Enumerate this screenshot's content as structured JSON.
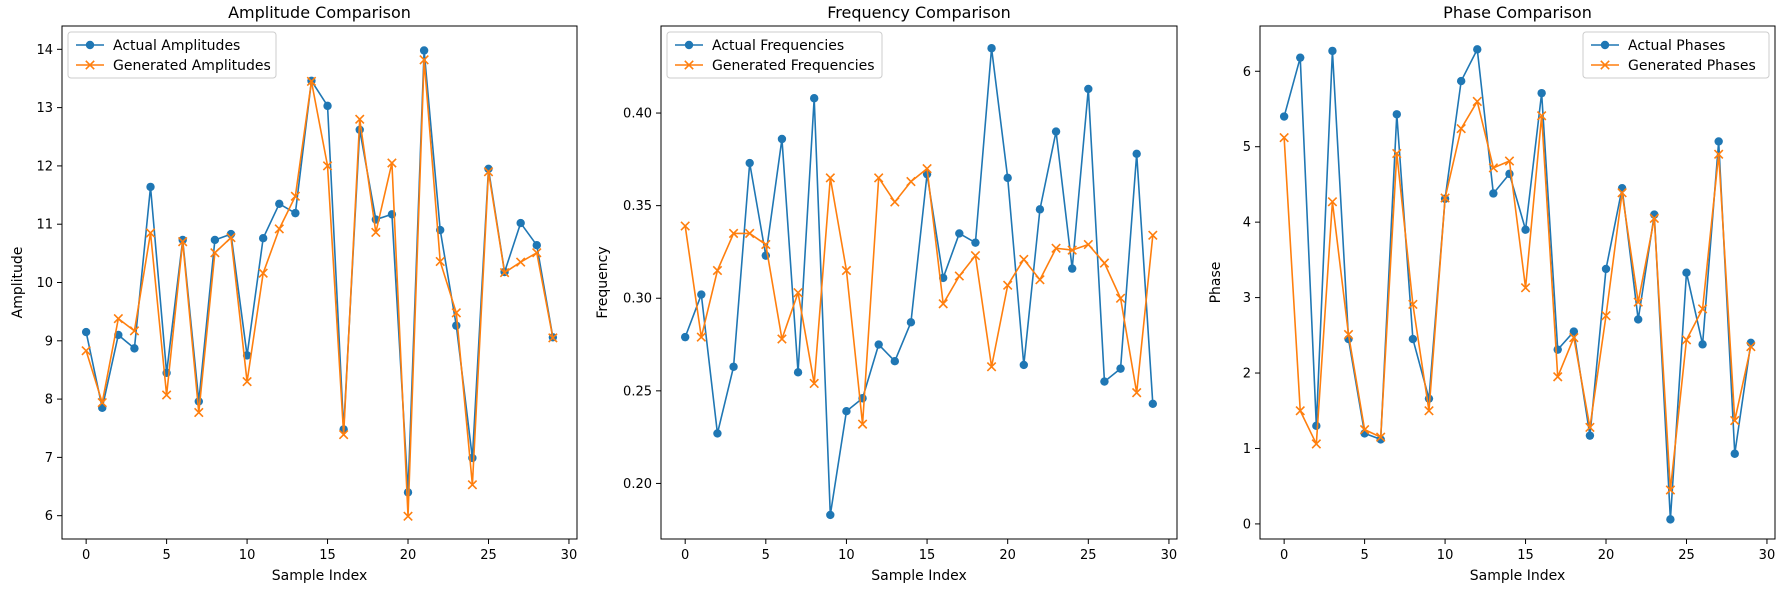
{
  "colors": {
    "actual": "#1f77b4",
    "generated": "#ff7f0e",
    "axes": "#000000",
    "legend_border": "#cccccc"
  },
  "chart_data": [
    {
      "type": "line",
      "title": "Amplitude Comparison",
      "xlabel": "Sample Index",
      "ylabel": "Amplitude",
      "xlim": [
        -1.5,
        30.5
      ],
      "ylim": [
        5.6,
        14.4
      ],
      "xticks": [
        0,
        5,
        10,
        15,
        20,
        25,
        30
      ],
      "yticks": [
        6,
        7,
        8,
        9,
        10,
        11,
        12,
        13,
        14
      ],
      "legend_position": "top-left",
      "grid": false,
      "x": [
        0,
        1,
        2,
        3,
        4,
        5,
        6,
        7,
        8,
        9,
        10,
        11,
        12,
        13,
        14,
        15,
        16,
        17,
        18,
        19,
        20,
        21,
        22,
        23,
        24,
        25,
        26,
        27,
        28,
        29
      ],
      "series": [
        {
          "name": "Actual Amplitudes",
          "marker": "circle",
          "values": [
            9.15,
            7.85,
            9.1,
            8.87,
            11.64,
            8.45,
            10.73,
            7.96,
            10.73,
            10.83,
            8.75,
            10.76,
            11.35,
            11.19,
            13.46,
            13.03,
            7.48,
            12.62,
            11.08,
            11.17,
            6.4,
            13.98,
            10.9,
            9.26,
            6.99,
            11.95,
            10.18,
            11.02,
            10.64,
            9.06
          ]
        },
        {
          "name": "Generated Amplitudes",
          "marker": "x",
          "values": [
            8.83,
            7.94,
            9.38,
            9.17,
            10.85,
            8.07,
            10.7,
            7.77,
            10.51,
            10.77,
            8.3,
            10.16,
            10.92,
            11.48,
            13.45,
            12.0,
            7.39,
            12.8,
            10.86,
            12.05,
            5.99,
            13.82,
            10.36,
            9.48,
            6.53,
            11.9,
            10.17,
            10.35,
            10.51,
            9.05
          ]
        }
      ]
    },
    {
      "type": "line",
      "title": "Frequency Comparison",
      "xlabel": "Sample Index",
      "ylabel": "Frequency",
      "xlim": [
        -1.5,
        30.5
      ],
      "ylim": [
        0.17,
        0.447
      ],
      "xticks": [
        0,
        5,
        10,
        15,
        20,
        25,
        30
      ],
      "yticks": [
        0.2,
        0.25,
        0.3,
        0.35,
        0.4
      ],
      "ytick_labels": [
        "0.20",
        "0.25",
        "0.30",
        "0.35",
        "0.40"
      ],
      "legend_position": "top-left",
      "grid": false,
      "x": [
        0,
        1,
        2,
        3,
        4,
        5,
        6,
        7,
        8,
        9,
        10,
        11,
        12,
        13,
        14,
        15,
        16,
        17,
        18,
        19,
        20,
        21,
        22,
        23,
        24,
        25,
        26,
        27,
        28,
        29
      ],
      "series": [
        {
          "name": "Actual Frequencies",
          "marker": "circle",
          "values": [
            0.279,
            0.302,
            0.227,
            0.263,
            0.373,
            0.323,
            0.386,
            0.26,
            0.408,
            0.183,
            0.239,
            0.246,
            0.275,
            0.266,
            0.287,
            0.367,
            0.311,
            0.335,
            0.33,
            0.435,
            0.365,
            0.264,
            0.348,
            0.39,
            0.316,
            0.413,
            0.255,
            0.262,
            0.378,
            0.243
          ]
        },
        {
          "name": "Generated Frequencies",
          "marker": "x",
          "values": [
            0.339,
            0.279,
            0.315,
            0.335,
            0.335,
            0.329,
            0.278,
            0.303,
            0.254,
            0.365,
            0.315,
            0.232,
            0.365,
            0.352,
            0.363,
            0.37,
            0.297,
            0.312,
            0.323,
            0.263,
            0.307,
            0.321,
            0.31,
            0.327,
            0.326,
            0.329,
            0.319,
            0.3,
            0.249,
            0.334
          ]
        }
      ]
    },
    {
      "type": "line",
      "title": "Phase Comparison",
      "xlabel": "Sample Index",
      "ylabel": "Phase",
      "xlim": [
        -1.5,
        30.5
      ],
      "ylim": [
        -0.2,
        6.6
      ],
      "xticks": [
        0,
        5,
        10,
        15,
        20,
        25,
        30
      ],
      "yticks": [
        0,
        1,
        2,
        3,
        4,
        5,
        6
      ],
      "legend_position": "top-right",
      "grid": false,
      "x": [
        0,
        1,
        2,
        3,
        4,
        5,
        6,
        7,
        8,
        9,
        10,
        11,
        12,
        13,
        14,
        15,
        16,
        17,
        18,
        19,
        20,
        21,
        22,
        23,
        24,
        25,
        26,
        27,
        28,
        29
      ],
      "series": [
        {
          "name": "Actual Phases",
          "marker": "circle",
          "values": [
            5.4,
            6.18,
            1.3,
            6.27,
            2.45,
            1.2,
            1.12,
            5.43,
            2.45,
            1.66,
            4.31,
            5.87,
            6.29,
            4.38,
            4.64,
            3.9,
            5.71,
            2.31,
            2.55,
            1.17,
            3.38,
            4.45,
            2.71,
            4.1,
            0.06,
            3.33,
            2.38,
            5.07,
            0.93,
            2.4
          ]
        },
        {
          "name": "Generated Phases",
          "marker": "x",
          "values": [
            5.12,
            1.5,
            1.06,
            4.27,
            2.51,
            1.25,
            1.15,
            4.91,
            2.91,
            1.5,
            4.32,
            5.24,
            5.6,
            4.72,
            4.81,
            3.13,
            5.41,
            1.95,
            2.47,
            1.28,
            2.76,
            4.39,
            2.94,
            4.05,
            0.45,
            2.44,
            2.85,
            4.9,
            1.37,
            2.35
          ]
        }
      ]
    }
  ]
}
